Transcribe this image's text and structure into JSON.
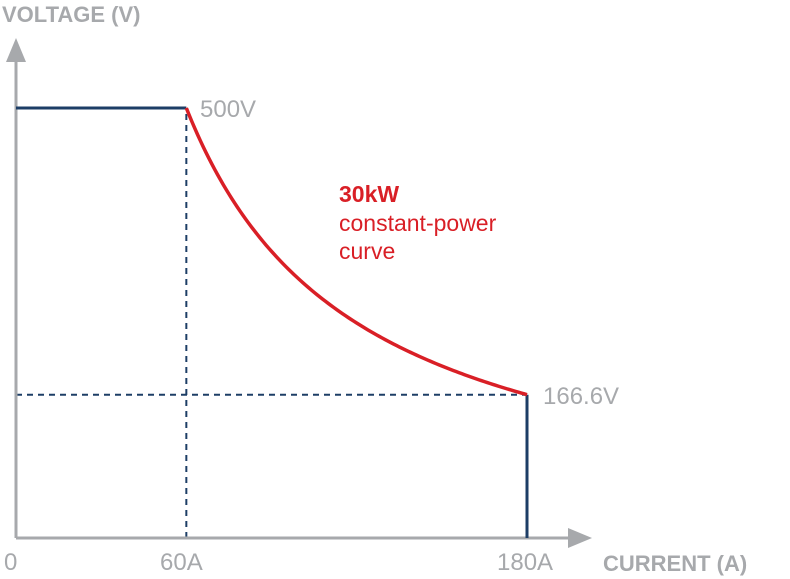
{
  "chart_data": {
    "type": "line",
    "ylabel": "VOLTAGE (V)",
    "xlabel": "CURRENT (A)",
    "x_tick_labels": [
      "0",
      "60A",
      "180A"
    ],
    "x_ticks": [
      0,
      60,
      180
    ],
    "point_labels": [
      "500V",
      "166.6V"
    ],
    "annotation": {
      "bold": "30kW",
      "line1": "constant-power",
      "line2": "curve"
    },
    "xlim": [
      0,
      200
    ],
    "ylim": [
      0,
      580
    ],
    "series": [
      {
        "values": [
          [
            0,
            500
          ],
          [
            60,
            500
          ],
          [
            180,
            166.6
          ],
          [
            180,
            0
          ]
        ]
      }
    ],
    "constant_power_kw": 30,
    "guides": [
      {
        "type": "vertical",
        "x": 60,
        "from_y": 0,
        "to_y": 500
      },
      {
        "type": "horizontal",
        "y": 166.6,
        "from_x": 0,
        "to_x": 180
      }
    ],
    "grid": false,
    "legend": "none",
    "colors": {
      "axis": "#a7a9ac",
      "limit_line": "#1d3e66",
      "power_curve": "#d91f26",
      "guide": "#1d3e66",
      "text": "#a7a9ac"
    }
  }
}
